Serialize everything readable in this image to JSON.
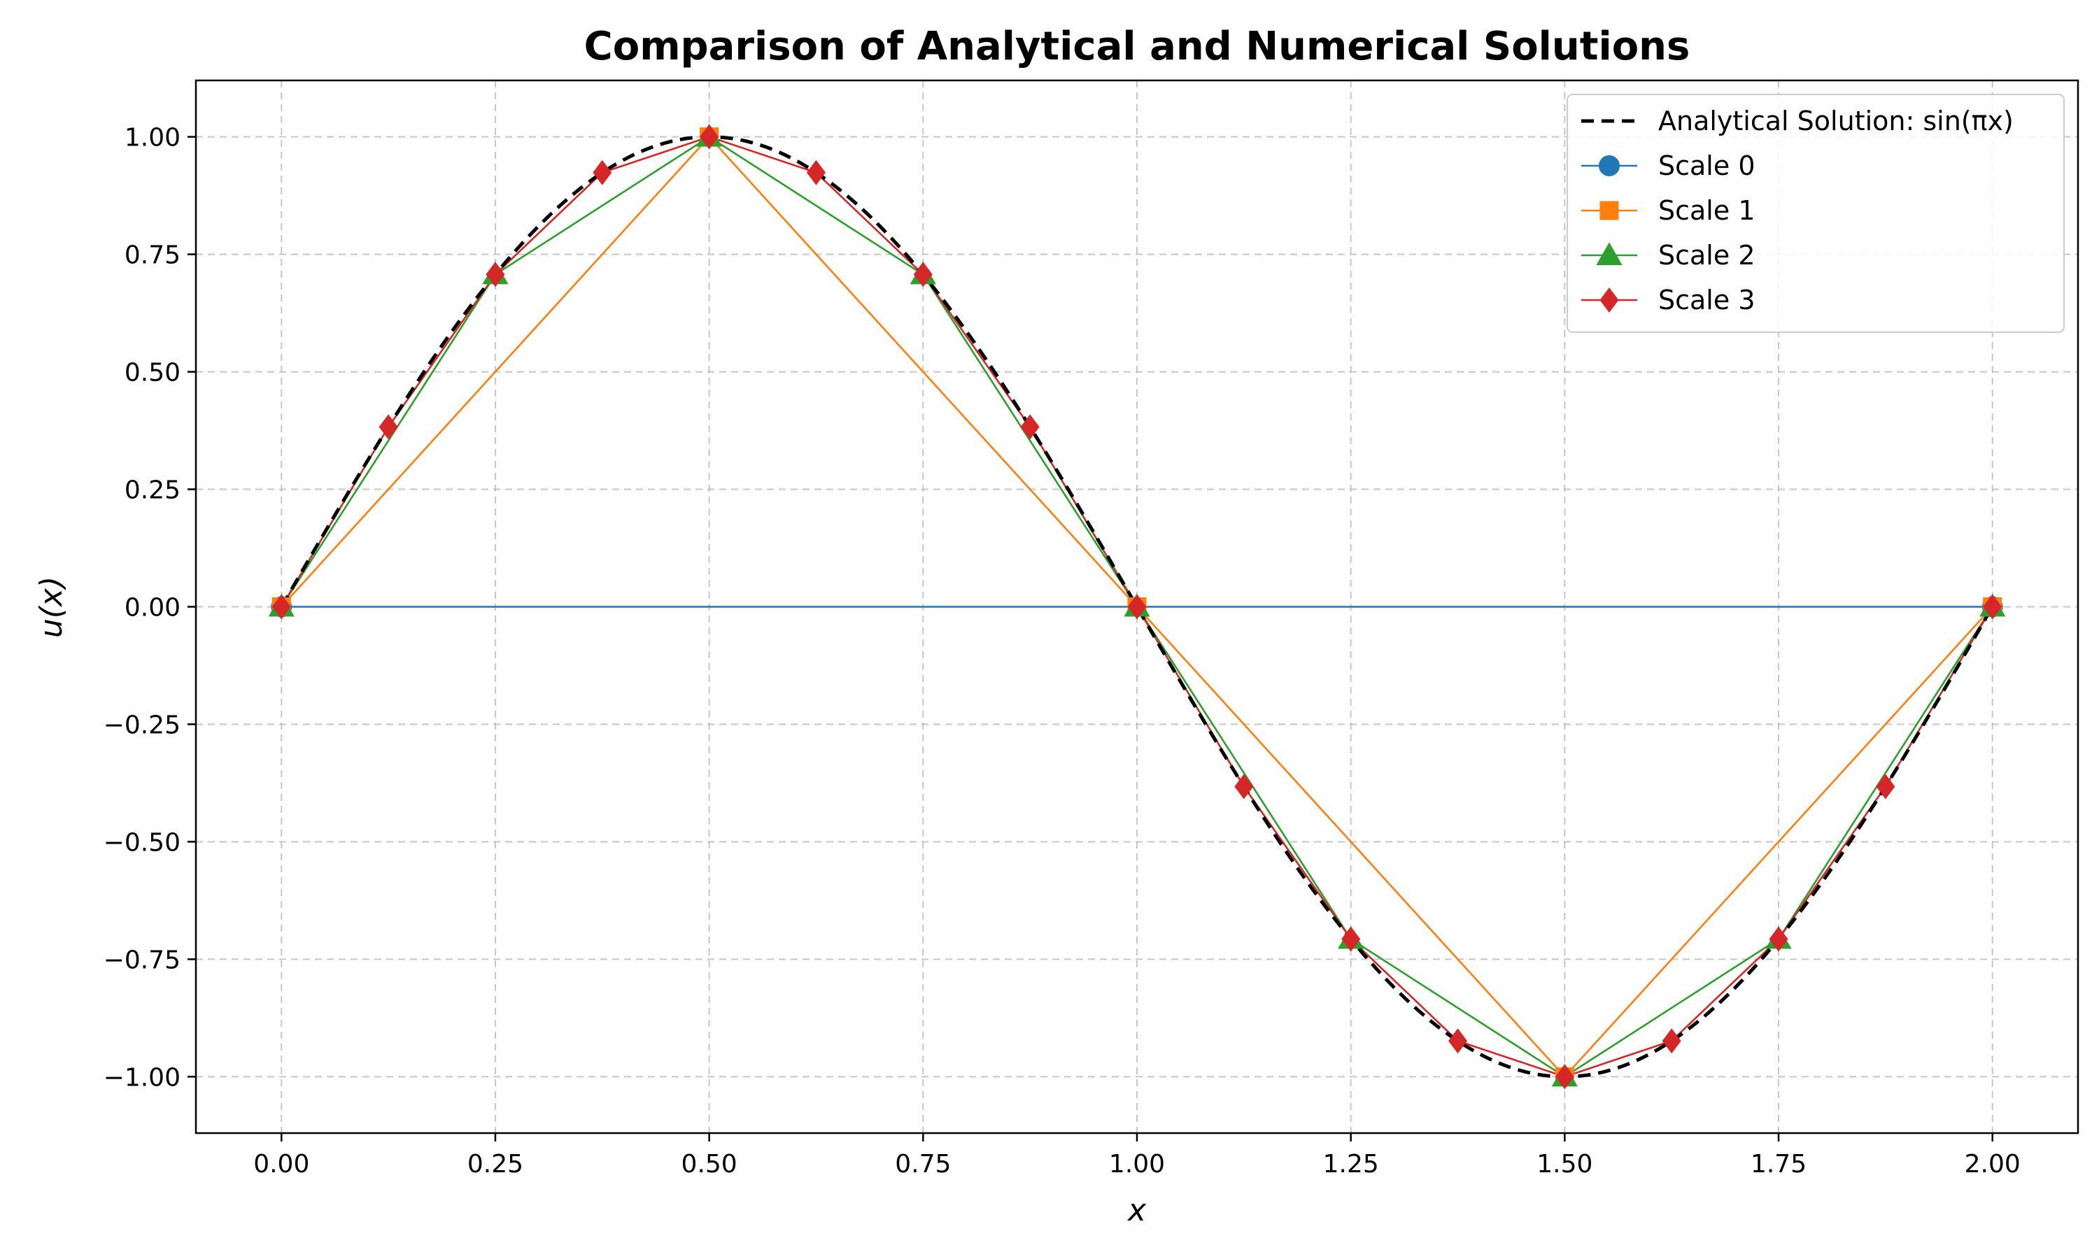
{
  "chart_data": {
    "type": "line",
    "title": "Comparison of Analytical and Numerical Solutions",
    "xlabel": "x",
    "ylabel": "u(x)",
    "xlim": [
      -0.1,
      2.1
    ],
    "ylim": [
      -1.12,
      1.12
    ],
    "xticks": [
      0.0,
      0.25,
      0.5,
      0.75,
      1.0,
      1.25,
      1.5,
      1.75,
      2.0
    ],
    "xtick_labels": [
      "0.00",
      "0.25",
      "0.50",
      "0.75",
      "1.00",
      "1.25",
      "1.50",
      "1.75",
      "2.00"
    ],
    "yticks": [
      1.0,
      0.75,
      0.5,
      0.25,
      0.0,
      -0.25,
      -0.5,
      -0.75,
      -1.0
    ],
    "ytick_labels": [
      "1.00",
      "0.75",
      "0.50",
      "0.25",
      "0.00",
      "−0.25",
      "−0.50",
      "−0.75",
      "−1.00"
    ],
    "grid": true,
    "legend_position": "top-right",
    "analytical": {
      "name": "Analytical Solution: sin(πx)",
      "color": "#000000",
      "style": "dashed",
      "x_range": [
        0,
        2
      ]
    },
    "series": [
      {
        "name": "Scale 0",
        "color": "#1f77b4",
        "marker": "circle",
        "x": [
          0.0,
          2.0
        ],
        "y": [
          0.0,
          0.0
        ]
      },
      {
        "name": "Scale 1",
        "color": "#ff7f0e",
        "marker": "square",
        "x": [
          0.0,
          0.5,
          1.0,
          1.5,
          2.0
        ],
        "y": [
          0.0,
          1.0,
          0.0,
          -1.0,
          0.0
        ]
      },
      {
        "name": "Scale 2",
        "color": "#2ca02c",
        "marker": "triangle",
        "x": [
          0.0,
          0.25,
          0.5,
          0.75,
          1.0,
          1.25,
          1.5,
          1.75,
          2.0
        ],
        "y": [
          0.0,
          0.7071,
          1.0,
          0.7071,
          0.0,
          -0.7071,
          -1.0,
          -0.7071,
          0.0
        ]
      },
      {
        "name": "Scale 3",
        "color": "#d62728",
        "marker": "diamond",
        "x": [
          0.0,
          0.125,
          0.25,
          0.375,
          0.5,
          0.625,
          0.75,
          0.875,
          1.0,
          1.125,
          1.25,
          1.375,
          1.5,
          1.625,
          1.75,
          1.875,
          2.0
        ],
        "y": [
          0.0,
          0.3827,
          0.7071,
          0.9239,
          1.0,
          0.9239,
          0.7071,
          0.3827,
          0.0,
          -0.3827,
          -0.7071,
          -0.9239,
          -1.0,
          -0.9239,
          -0.7071,
          -0.3827,
          0.0
        ]
      }
    ]
  }
}
